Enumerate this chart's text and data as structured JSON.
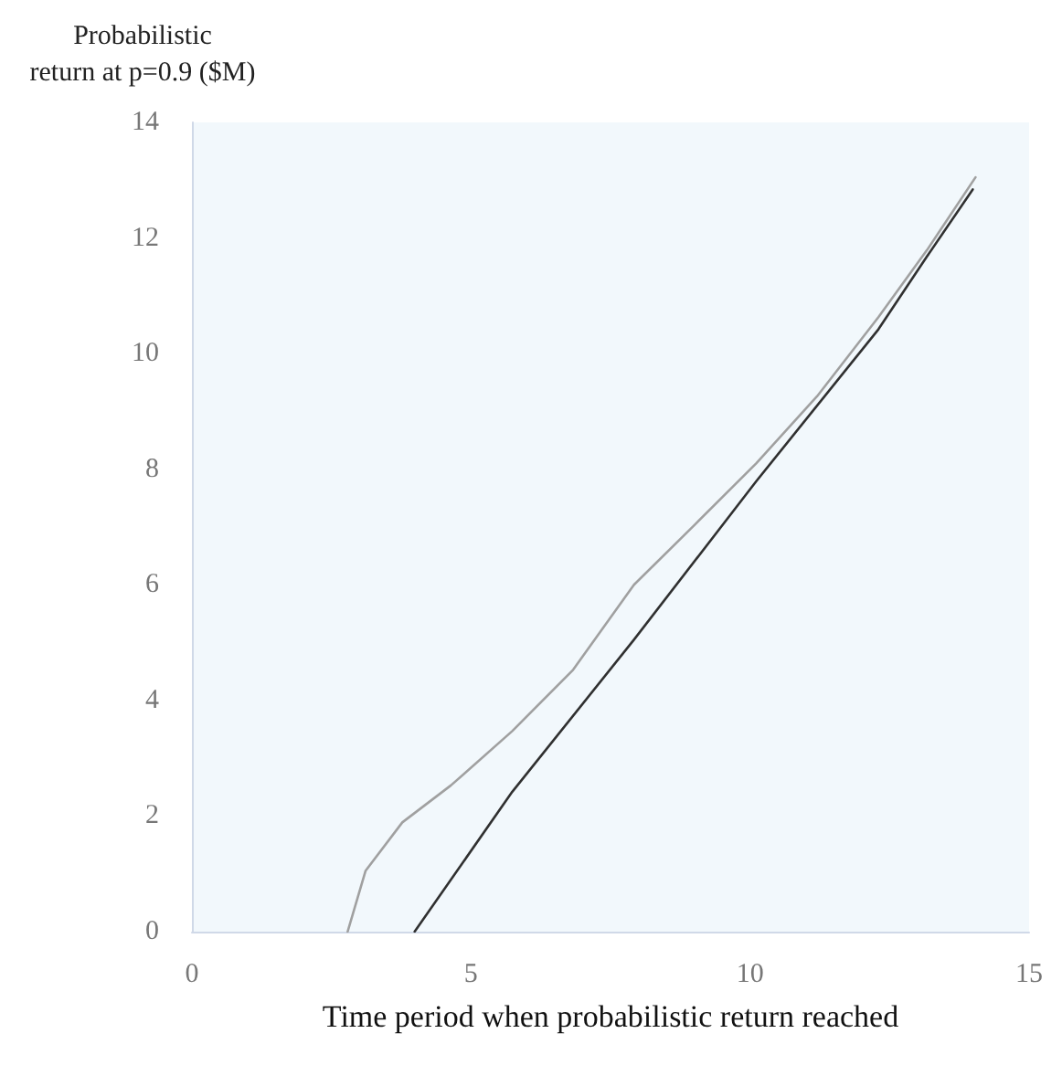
{
  "chart_data": {
    "type": "line",
    "xlabel": "Time period when probabilistic return reached",
    "ylabel": "Probabilistic\nreturn at p=0.9 ($M)",
    "series": [
      {
        "color": "#a0a0a0",
        "x": [
          2.79,
          3.11,
          3.77,
          4.64,
          5.74,
          6.83,
          7.92,
          9.02,
          10.11,
          11.2,
          12.3,
          13.17,
          14.04
        ],
        "values": [
          0,
          1.05,
          1.89,
          2.53,
          3.47,
          4.53,
          6.0,
          7.05,
          8.1,
          9.26,
          10.63,
          11.79,
          13.05
        ]
      },
      {
        "color": "#303030",
        "x": [
          3.99,
          5.74,
          7.92,
          10.11,
          12.3,
          13.17,
          13.99
        ],
        "values": [
          0,
          2.42,
          5.05,
          7.79,
          10.42,
          11.68,
          12.84
        ]
      }
    ],
    "xlim": [
      0,
      15
    ],
    "xticks": [
      0,
      5,
      10,
      15
    ],
    "ylim": [
      0,
      14
    ],
    "yticks": [
      0,
      2,
      4,
      6,
      8,
      10,
      12,
      14
    ],
    "marker": "none",
    "line_style": "solid"
  }
}
